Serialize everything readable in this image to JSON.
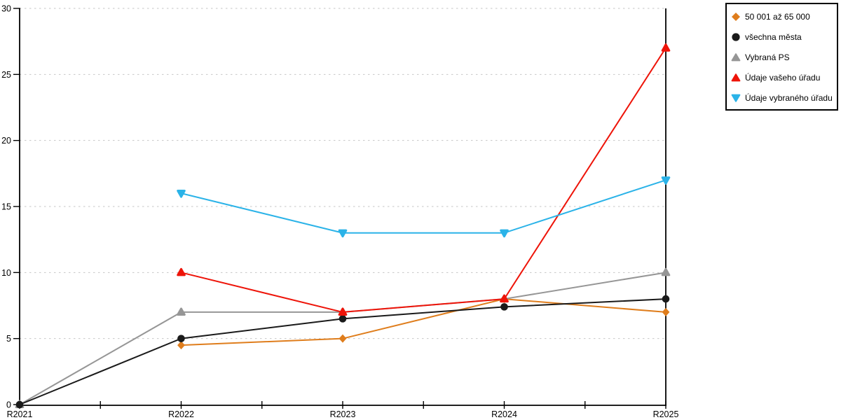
{
  "chart_data": {
    "type": "line",
    "title": "",
    "xlabel": "",
    "ylabel": "",
    "categories": [
      "R2021",
      "R2022",
      "R2023",
      "R2024",
      "R2025"
    ],
    "ylim": [
      0,
      30
    ],
    "yticks": [
      0,
      5,
      10,
      15,
      20,
      25,
      30
    ],
    "grid": "horizontal-dashed",
    "gridline_color": "#c6c6c6",
    "axis_color": "#000000",
    "legend_position": "outside-top-right",
    "legend_border": true,
    "series": [
      {
        "name": "50 001 až 65 000",
        "color": "#df7d1c",
        "marker": "diamond",
        "values": [
          null,
          4.5,
          5,
          8,
          7
        ]
      },
      {
        "name": "všechna města",
        "color": "#1a1a1a",
        "marker": "circle",
        "values": [
          0,
          5,
          6.5,
          7.4,
          8
        ]
      },
      {
        "name": "Vybraná PS",
        "color": "#969696",
        "marker": "triangle-up",
        "values": [
          0,
          7,
          7,
          8,
          10
        ]
      },
      {
        "name": "Údaje vašeho úřadu",
        "color": "#ee1409",
        "marker": "triangle-up",
        "values": [
          null,
          10,
          7,
          8,
          27
        ]
      },
      {
        "name": "Údaje vybraného úřadu",
        "color": "#2bb3e8",
        "marker": "triangle-down",
        "values": [
          null,
          16,
          13,
          13,
          17
        ]
      }
    ]
  }
}
